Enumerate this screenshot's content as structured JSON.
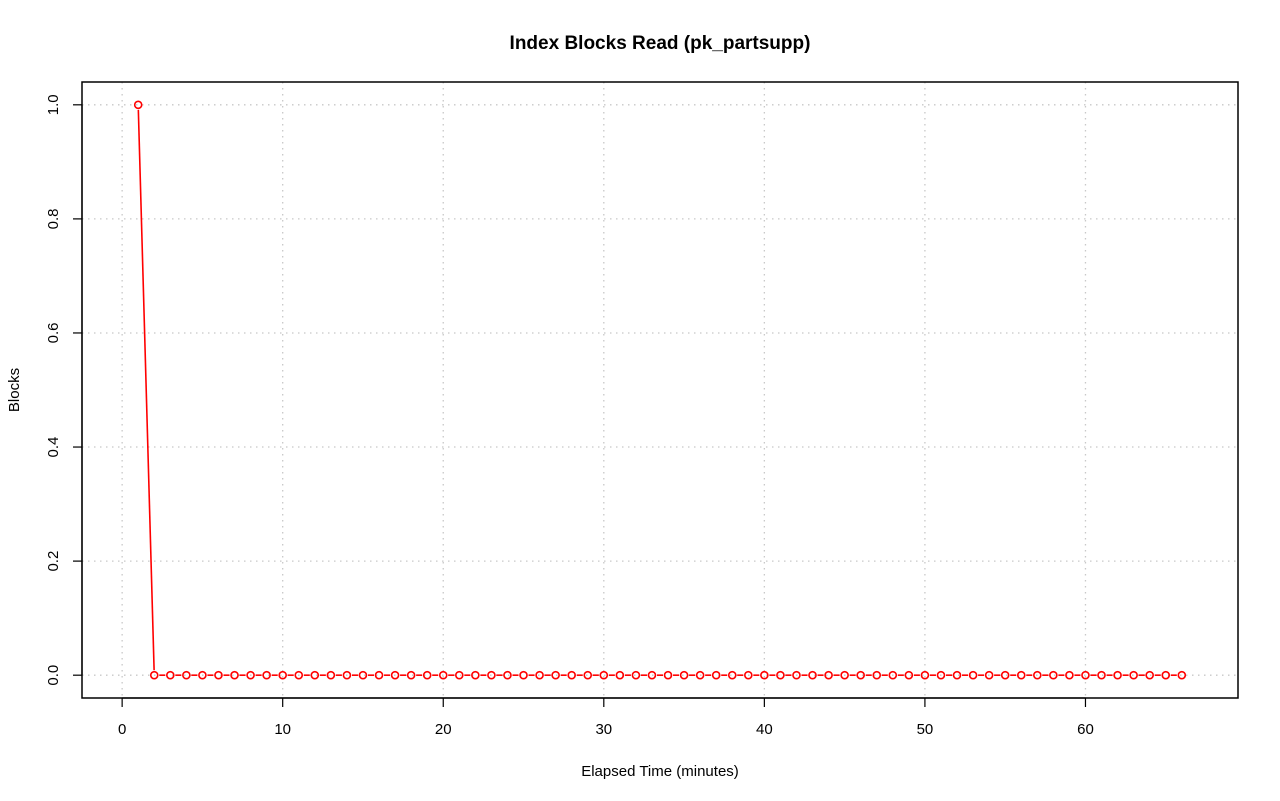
{
  "chart_data": {
    "type": "line",
    "title": "Index Blocks Read (pk_partsupp)",
    "xlabel": "Elapsed Time (minutes)",
    "ylabel": "Blocks",
    "xlim": [
      -2.5,
      69.5
    ],
    "ylim": [
      -0.04,
      1.04
    ],
    "xticks": [
      0,
      10,
      20,
      30,
      40,
      50,
      60
    ],
    "yticks": [
      0.0,
      0.2,
      0.4,
      0.6,
      0.8,
      1.0
    ],
    "ytick_labels": [
      "0.0",
      "0.2",
      "0.4",
      "0.6",
      "0.8",
      "1.0"
    ],
    "grid": true,
    "series_color": "#ff0000",
    "series": [
      {
        "x": [
          1,
          2,
          3,
          4,
          5,
          6,
          7,
          8,
          9,
          10,
          11,
          12,
          13,
          14,
          15,
          16,
          17,
          18,
          19,
          20,
          21,
          22,
          23,
          24,
          25,
          26,
          27,
          28,
          29,
          30,
          31,
          32,
          33,
          34,
          35,
          36,
          37,
          38,
          39,
          40,
          41,
          42,
          43,
          44,
          45,
          46,
          47,
          48,
          49,
          50,
          51,
          52,
          53,
          54,
          55,
          56,
          57,
          58,
          59,
          60,
          61,
          62,
          63,
          64,
          65,
          66
        ],
        "y": [
          1,
          0,
          0,
          0,
          0,
          0,
          0,
          0,
          0,
          0,
          0,
          0,
          0,
          0,
          0,
          0,
          0,
          0,
          0,
          0,
          0,
          0,
          0,
          0,
          0,
          0,
          0,
          0,
          0,
          0,
          0,
          0,
          0,
          0,
          0,
          0,
          0,
          0,
          0,
          0,
          0,
          0,
          0,
          0,
          0,
          0,
          0,
          0,
          0,
          0,
          0,
          0,
          0,
          0,
          0,
          0,
          0,
          0,
          0,
          0,
          0,
          0,
          0,
          0,
          0,
          0
        ]
      }
    ]
  }
}
